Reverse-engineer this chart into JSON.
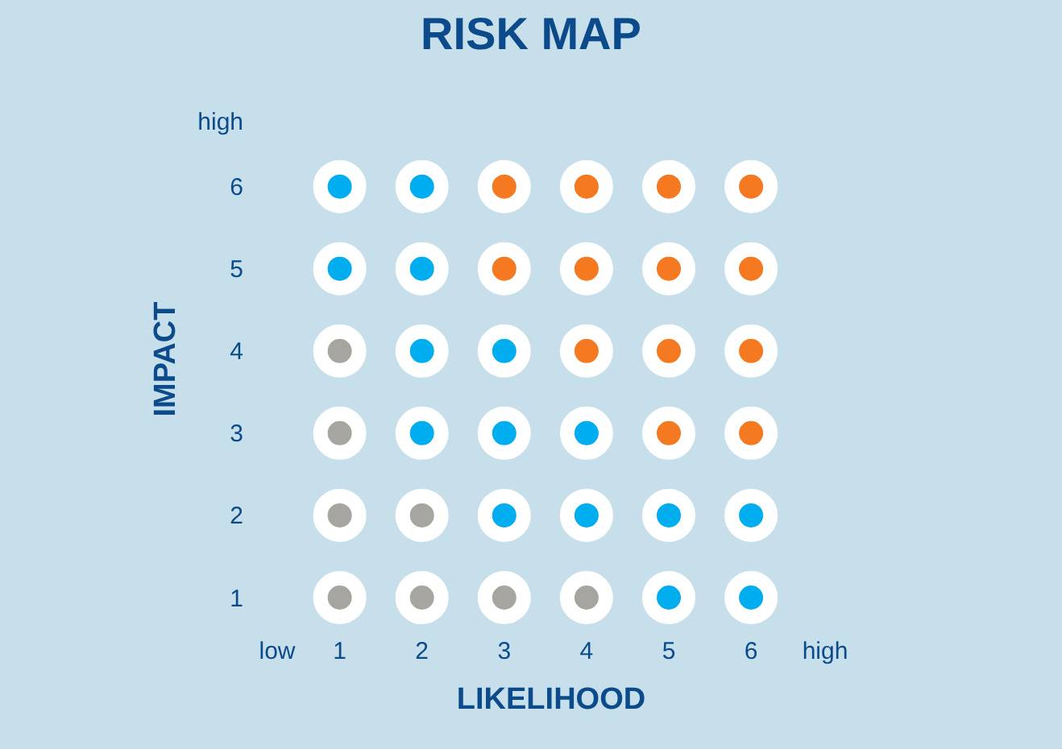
{
  "chart_data": {
    "type": "scatter",
    "title": "RISK MAP",
    "xlabel": "LIKELIHOOD",
    "ylabel": "IMPACT",
    "x": [
      1,
      2,
      3,
      4,
      5,
      6,
      1,
      2,
      3,
      4,
      5,
      6,
      1,
      2,
      3,
      4,
      5,
      6,
      1,
      2,
      3,
      4,
      5,
      6,
      1,
      2,
      3,
      4,
      5,
      6,
      1,
      2,
      3,
      4,
      5,
      6
    ],
    "values": [
      6,
      6,
      6,
      6,
      6,
      6,
      5,
      5,
      5,
      5,
      5,
      5,
      4,
      4,
      4,
      4,
      4,
      4,
      3,
      3,
      3,
      3,
      3,
      3,
      2,
      2,
      2,
      2,
      2,
      2,
      1,
      1,
      1,
      1,
      1,
      1
    ],
    "colors": [
      "#00aeef",
      "#00aeef",
      "#f47920",
      "#f47920",
      "#f47920",
      "#f47920",
      "#00aeef",
      "#00aeef",
      "#f47920",
      "#f47920",
      "#f47920",
      "#f47920",
      "#a7a59f",
      "#00aeef",
      "#00aeef",
      "#f47920",
      "#f47920",
      "#f47920",
      "#a7a59f",
      "#00aeef",
      "#00aeef",
      "#00aeef",
      "#f47920",
      "#f47920",
      "#a7a59f",
      "#a7a59f",
      "#00aeef",
      "#00aeef",
      "#00aeef",
      "#00aeef",
      "#a7a59f",
      "#a7a59f",
      "#a7a59f",
      "#a7a59f",
      "#00aeef",
      "#00aeef"
    ],
    "marker": "circle",
    "xlim": [
      0.24,
      6.9
    ],
    "xticks": [
      {
        "value": 0.24,
        "label": "low"
      },
      1,
      2,
      3,
      4,
      5,
      6,
      {
        "value": 6.9,
        "label": "high"
      }
    ],
    "ylim": [
      1,
      6.8
    ],
    "yticks": [
      1,
      2,
      3,
      4,
      5,
      6,
      {
        "value": 6.8,
        "label": "high"
      }
    ],
    "grid": false,
    "legend": false
  }
}
